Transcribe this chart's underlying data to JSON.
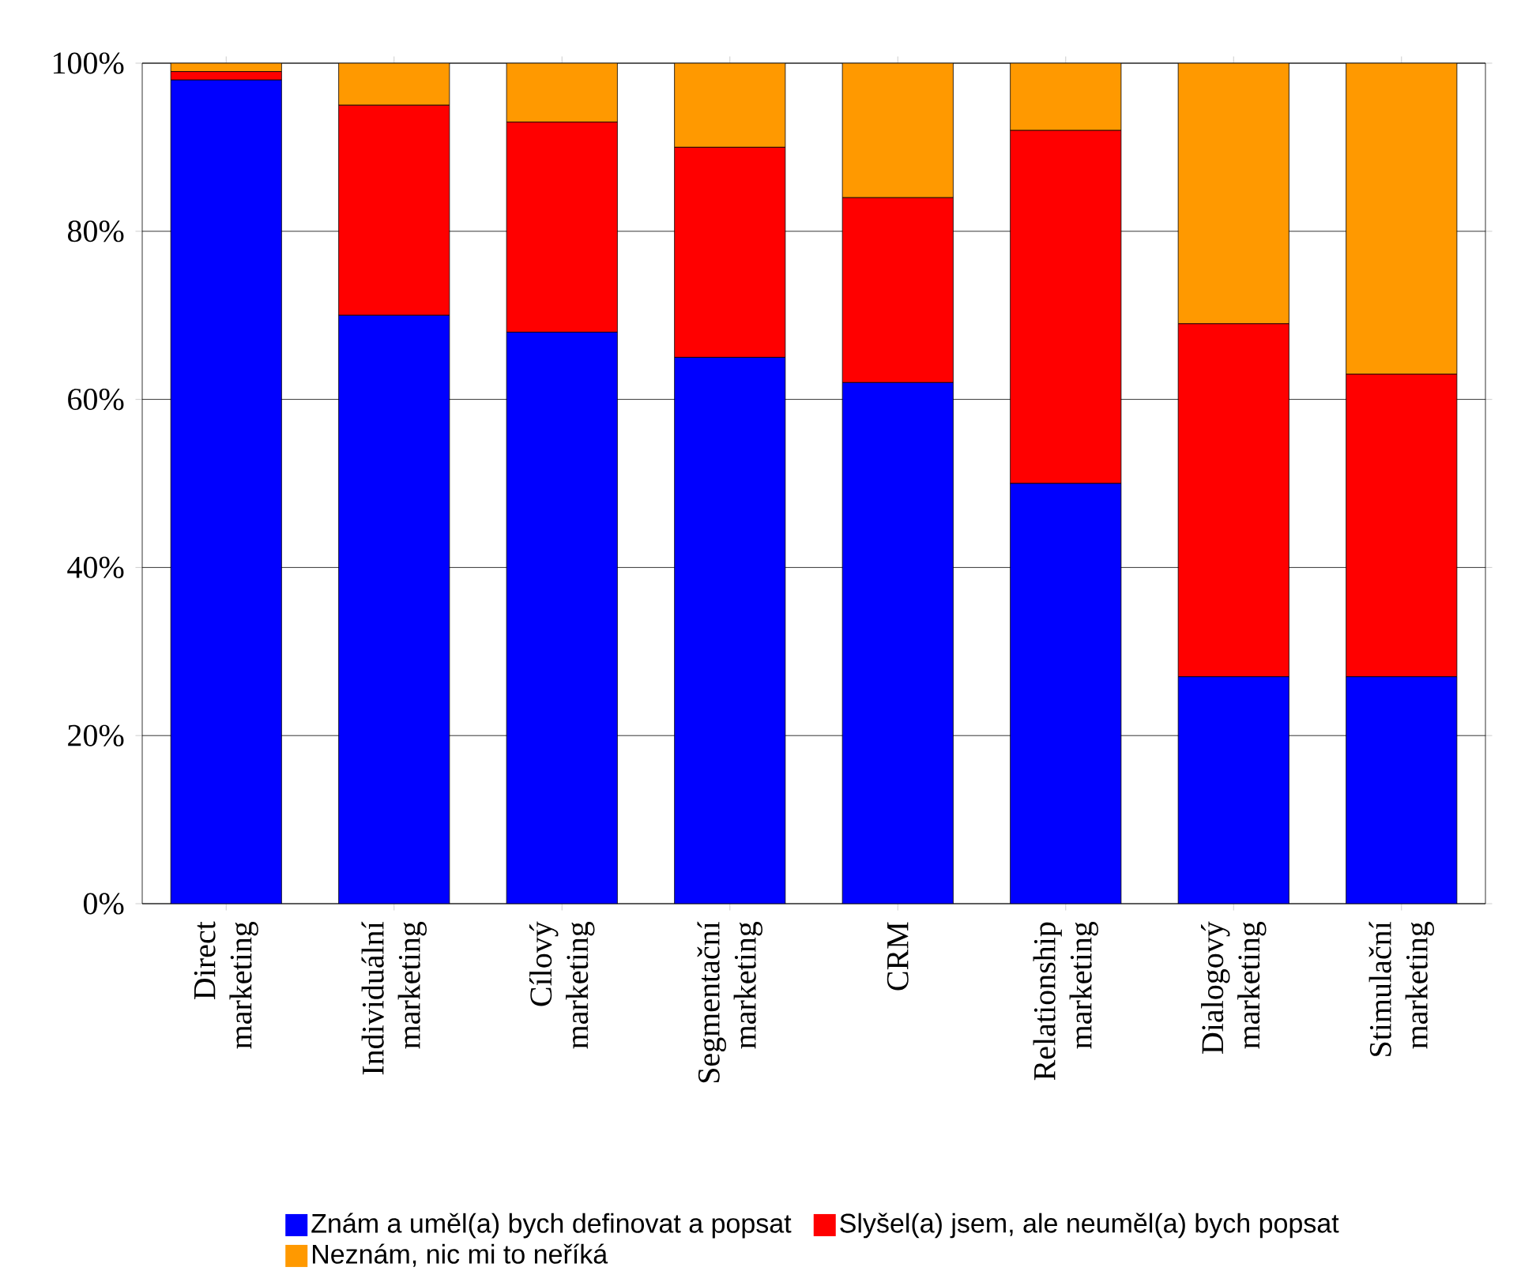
{
  "chart_data": {
    "type": "bar",
    "stacked": true,
    "categories": [
      "Direct marketing",
      "Individuální marketing",
      "Cílový marketing",
      "Segmentační marketing",
      "CRM",
      "Relationship marketing",
      "Dialogový marketing",
      "Stimulační marketing"
    ],
    "series": [
      {
        "name": "Znám a uměl(a) bych definovat a popsat",
        "color": "#0000ff",
        "values": [
          98,
          70,
          68,
          65,
          62,
          50,
          27,
          27
        ]
      },
      {
        "name": "Slyšel(a) jsem, ale neuměl(a) bych popsat",
        "color": "#ff0000",
        "values": [
          1,
          25,
          25,
          25,
          22,
          42,
          42,
          36
        ]
      },
      {
        "name": "Neznám, nic mi to neříká",
        "color": "#ff9900",
        "values": [
          1,
          5,
          7,
          10,
          16,
          8,
          31,
          37
        ]
      }
    ],
    "ylim": [
      0,
      100
    ],
    "yticks": [
      {
        "value": 0,
        "label": "0%"
      },
      {
        "value": 20,
        "label": "20%"
      },
      {
        "value": 40,
        "label": "40%"
      },
      {
        "value": 60,
        "label": "60%"
      },
      {
        "value": 80,
        "label": "80%"
      },
      {
        "value": 100,
        "label": "100%"
      }
    ],
    "grid": "y",
    "legend": "bottom"
  }
}
